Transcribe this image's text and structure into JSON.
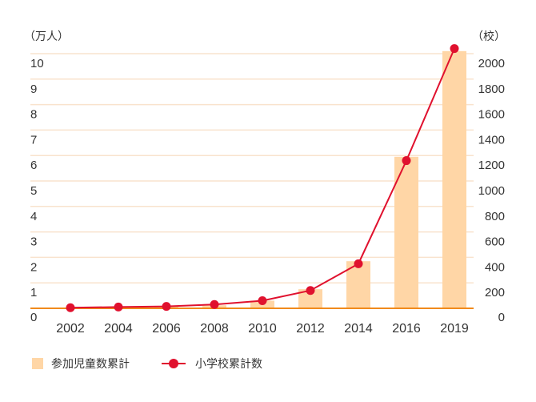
{
  "chart_data": {
    "type": "bar",
    "categories": [
      "2002",
      "2004",
      "2006",
      "2008",
      "2010",
      "2012",
      "2014",
      "2016",
      "2019"
    ],
    "series": [
      {
        "name": "参加児童数累計",
        "type": "bar",
        "axis": "left",
        "values": [
          0.02,
          0.05,
          0.08,
          0.12,
          0.3,
          0.75,
          1.85,
          5.95,
          10.1
        ]
      },
      {
        "name": "小学校累計数",
        "type": "line",
        "axis": "right",
        "values": [
          5,
          10,
          15,
          30,
          60,
          140,
          350,
          1160,
          2040
        ]
      }
    ],
    "y_left": {
      "unit": "（万人）",
      "ylim": [
        0,
        10
      ],
      "ticks": [
        "0",
        "1",
        "2",
        "3",
        "4",
        "5",
        "6",
        "7",
        "8",
        "9",
        "10"
      ]
    },
    "y_right": {
      "unit": "（校）",
      "ylim": [
        0,
        2000
      ],
      "ticks": [
        "0",
        "200",
        "400",
        "600",
        "800",
        "1000",
        "1200",
        "1400",
        "1600",
        "1800",
        "2000"
      ]
    },
    "grid": true,
    "legend_position": "bottom-left",
    "colors": {
      "bar": "#ffd6a6",
      "line": "#e0112e",
      "grid": "#f9e3cd",
      "baseline": "#f08a1c"
    }
  }
}
